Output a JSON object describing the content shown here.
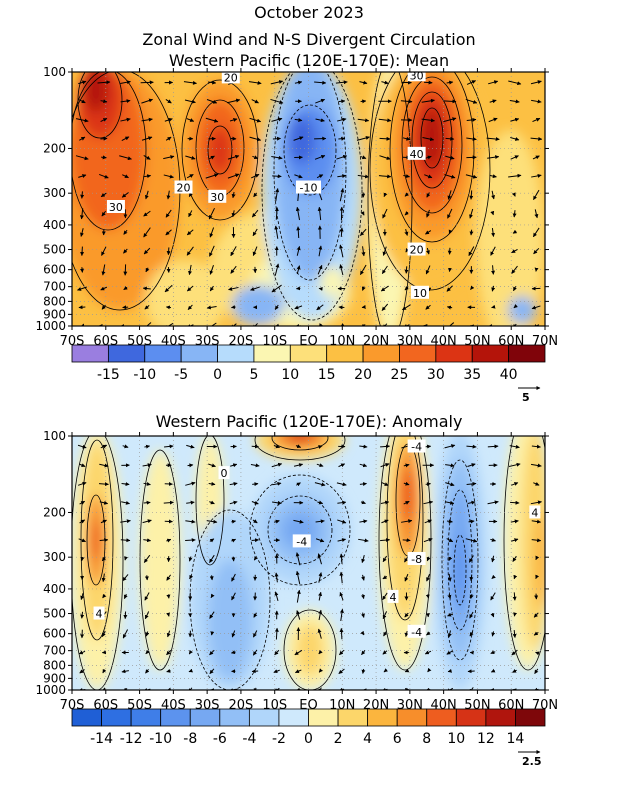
{
  "header": {
    "line1": "October 2023",
    "line2": "Zonal Wind and N-S Divergent Circulation",
    "line3": "Western Pacific (120E-170E): Mean"
  },
  "chart_data": [
    {
      "type": "heatmap",
      "title": "Western Pacific (120E-170E): Mean",
      "x_ticks": [
        "70S",
        "60S",
        "50S",
        "40S",
        "30S",
        "20S",
        "10S",
        "EQ",
        "10N",
        "20N",
        "30N",
        "40N",
        "50N",
        "60N",
        "70N"
      ],
      "y_ticks": [
        "100",
        "200",
        "300",
        "400",
        "500",
        "600",
        "700",
        "800",
        "900",
        "1000"
      ],
      "y_values": [
        100,
        200,
        300,
        400,
        500,
        600,
        700,
        800,
        900,
        1000
      ],
      "y_scale": "log",
      "xlim": [
        -70,
        70
      ],
      "ylim": [
        1000,
        100
      ],
      "grid": true,
      "contour_labels": [
        {
          "text": "20",
          "lat": -23,
          "p": 105
        },
        {
          "text": "30",
          "lat": 32,
          "p": 103
        },
        {
          "text": "40",
          "lat": 32,
          "p": 210
        },
        {
          "text": "-10",
          "lat": 0,
          "p": 285
        },
        {
          "text": "20",
          "lat": -37,
          "p": 285
        },
        {
          "text": "30",
          "lat": -27,
          "p": 310
        },
        {
          "text": "30",
          "lat": -57,
          "p": 340
        },
        {
          "text": "20",
          "lat": 32,
          "p": 500
        },
        {
          "text": "10",
          "lat": 33,
          "p": 740
        }
      ],
      "colorbar": {
        "ticks": [
          "-15",
          "-10",
          "-5",
          "0",
          "5",
          "10",
          "15",
          "20",
          "25",
          "30",
          "35",
          "40"
        ],
        "colors": [
          "#9a7ee0",
          "#3f68de",
          "#5c8ef0",
          "#87b5f5",
          "#b6dcfc",
          "#fbf6b2",
          "#fde07a",
          "#fcc043",
          "#fa9a2c",
          "#f2661f",
          "#dc3414",
          "#b4140a",
          "#80040a"
        ]
      },
      "vector_ref": "5"
    },
    {
      "type": "heatmap",
      "title": "Western Pacific (120E-170E): Anomaly",
      "x_ticks": [
        "70S",
        "60S",
        "50S",
        "40S",
        "30S",
        "20S",
        "10S",
        "EQ",
        "10N",
        "20N",
        "30N",
        "40N",
        "50N",
        "60N",
        "70N"
      ],
      "y_ticks": [
        "100",
        "200",
        "300",
        "400",
        "500",
        "600",
        "700",
        "800",
        "900",
        "1000"
      ],
      "y_values": [
        100,
        200,
        300,
        400,
        500,
        600,
        700,
        800,
        900,
        1000
      ],
      "y_scale": "log",
      "xlim": [
        -70,
        70
      ],
      "ylim": [
        1000,
        100
      ],
      "grid": true,
      "contour_labels": [
        {
          "text": "-4",
          "lat": 32,
          "p": 110
        },
        {
          "text": "0",
          "lat": -25,
          "p": 140
        },
        {
          "text": "4",
          "lat": 67,
          "p": 200
        },
        {
          "text": "-4",
          "lat": -2,
          "p": 260
        },
        {
          "text": "-8",
          "lat": 32,
          "p": 305
        },
        {
          "text": "4",
          "lat": 25,
          "p": 430
        },
        {
          "text": "4",
          "lat": -62,
          "p": 500
        },
        {
          "text": "-4",
          "lat": 32,
          "p": 590
        }
      ],
      "colorbar": {
        "ticks": [
          "-14",
          "-12",
          "-10",
          "-8",
          "-6",
          "-4",
          "-2",
          "0",
          "2",
          "4",
          "6",
          "8",
          "10",
          "12",
          "14"
        ],
        "colors": [
          "#1f5fd6",
          "#2e6fe2",
          "#3f7ee8",
          "#5c93ee",
          "#76a8f2",
          "#92bff6",
          "#b0d6fa",
          "#cfe9fc",
          "#fdf1a8",
          "#fcd66a",
          "#fbb53e",
          "#f78e2b",
          "#ee5d1f",
          "#d63316",
          "#b0150d",
          "#7e070a"
        ]
      },
      "vector_ref": "2.5"
    }
  ]
}
